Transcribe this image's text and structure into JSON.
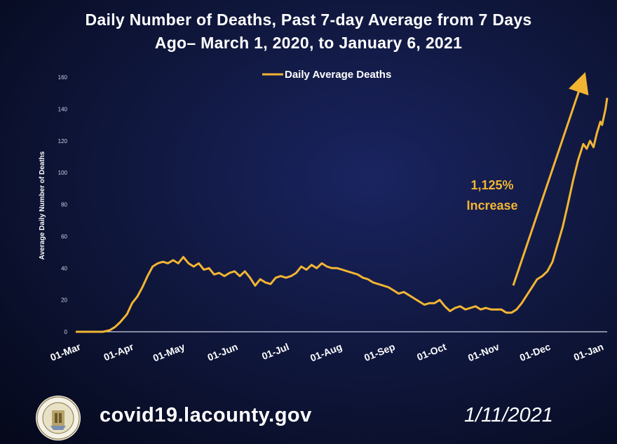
{
  "title_line1": "Daily Number of Deaths, Past 7-day Average from 7 Days",
  "title_line2": "Ago– March 1, 2020, to January 6, 2021",
  "footer": {
    "url": "covid19.lacounty.gov",
    "date": "1/11/2021",
    "seal_icon": "la-county-seal-icon"
  },
  "colors": {
    "line": "#f2b533",
    "annotation": "#f2b533",
    "axis": "#cfd3e6",
    "text": "#ffffff"
  },
  "annotation": {
    "line1": "1,125%",
    "line2": "Increase"
  },
  "chart_data": {
    "type": "line",
    "ylabel": "Average Daily Number of Deaths",
    "xlabel": "",
    "ylim": [
      0,
      160
    ],
    "yticks": [
      0,
      20,
      40,
      60,
      80,
      100,
      120,
      140,
      160
    ],
    "xlim": [
      "2020-03-01",
      "2021-01-06"
    ],
    "xticks": [
      {
        "date": "2020-03-01",
        "label": "01-Mar"
      },
      {
        "date": "2020-04-01",
        "label": "01-Apr"
      },
      {
        "date": "2020-05-01",
        "label": "01-May"
      },
      {
        "date": "2020-06-01",
        "label": "01-Jun"
      },
      {
        "date": "2020-07-01",
        "label": "01-Jul"
      },
      {
        "date": "2020-08-01",
        "label": "01-Aug"
      },
      {
        "date": "2020-09-01",
        "label": "01-Sep"
      },
      {
        "date": "2020-10-01",
        "label": "01-Oct"
      },
      {
        "date": "2020-11-01",
        "label": "01-Nov"
      },
      {
        "date": "2020-12-01",
        "label": "01-Dec"
      },
      {
        "date": "2021-01-01",
        "label": "01-Jan"
      }
    ],
    "legend_position": "top-center",
    "grid": false,
    "series": [
      {
        "name": "Daily Average Deaths",
        "points": [
          [
            "2020-03-01",
            0
          ],
          [
            "2020-03-10",
            0
          ],
          [
            "2020-03-17",
            0
          ],
          [
            "2020-03-21",
            1
          ],
          [
            "2020-03-24",
            3
          ],
          [
            "2020-03-27",
            6
          ],
          [
            "2020-03-31",
            11
          ],
          [
            "2020-04-03",
            18
          ],
          [
            "2020-04-06",
            22
          ],
          [
            "2020-04-09",
            28
          ],
          [
            "2020-04-12",
            35
          ],
          [
            "2020-04-15",
            41
          ],
          [
            "2020-04-18",
            43
          ],
          [
            "2020-04-21",
            44
          ],
          [
            "2020-04-24",
            43
          ],
          [
            "2020-04-27",
            45
          ],
          [
            "2020-04-30",
            43
          ],
          [
            "2020-05-03",
            47
          ],
          [
            "2020-05-06",
            43
          ],
          [
            "2020-05-09",
            41
          ],
          [
            "2020-05-12",
            43
          ],
          [
            "2020-05-15",
            39
          ],
          [
            "2020-05-18",
            40
          ],
          [
            "2020-05-21",
            36
          ],
          [
            "2020-05-24",
            37
          ],
          [
            "2020-05-27",
            35
          ],
          [
            "2020-05-30",
            37
          ],
          [
            "2020-06-02",
            38
          ],
          [
            "2020-06-05",
            35
          ],
          [
            "2020-06-08",
            38
          ],
          [
            "2020-06-11",
            34
          ],
          [
            "2020-06-14",
            29
          ],
          [
            "2020-06-17",
            33
          ],
          [
            "2020-06-20",
            31
          ],
          [
            "2020-06-23",
            30
          ],
          [
            "2020-06-26",
            34
          ],
          [
            "2020-06-29",
            35
          ],
          [
            "2020-07-02",
            34
          ],
          [
            "2020-07-05",
            35
          ],
          [
            "2020-07-08",
            37
          ],
          [
            "2020-07-11",
            41
          ],
          [
            "2020-07-14",
            39
          ],
          [
            "2020-07-17",
            42
          ],
          [
            "2020-07-20",
            40
          ],
          [
            "2020-07-23",
            43
          ],
          [
            "2020-07-26",
            41
          ],
          [
            "2020-07-29",
            40
          ],
          [
            "2020-08-01",
            40
          ],
          [
            "2020-08-04",
            39
          ],
          [
            "2020-08-07",
            38
          ],
          [
            "2020-08-10",
            37
          ],
          [
            "2020-08-13",
            36
          ],
          [
            "2020-08-16",
            34
          ],
          [
            "2020-08-19",
            33
          ],
          [
            "2020-08-22",
            31
          ],
          [
            "2020-08-25",
            30
          ],
          [
            "2020-08-28",
            29
          ],
          [
            "2020-08-31",
            28
          ],
          [
            "2020-09-03",
            26
          ],
          [
            "2020-09-06",
            24
          ],
          [
            "2020-09-09",
            25
          ],
          [
            "2020-09-12",
            23
          ],
          [
            "2020-09-15",
            21
          ],
          [
            "2020-09-18",
            19
          ],
          [
            "2020-09-21",
            17
          ],
          [
            "2020-09-24",
            18
          ],
          [
            "2020-09-27",
            18
          ],
          [
            "2020-09-30",
            20
          ],
          [
            "2020-10-03",
            16
          ],
          [
            "2020-10-06",
            13
          ],
          [
            "2020-10-09",
            15
          ],
          [
            "2020-10-12",
            16
          ],
          [
            "2020-10-15",
            14
          ],
          [
            "2020-10-18",
            15
          ],
          [
            "2020-10-21",
            16
          ],
          [
            "2020-10-24",
            14
          ],
          [
            "2020-10-27",
            15
          ],
          [
            "2020-10-30",
            14
          ],
          [
            "2020-11-02",
            14
          ],
          [
            "2020-11-05",
            14
          ],
          [
            "2020-11-08",
            12
          ],
          [
            "2020-11-11",
            12
          ],
          [
            "2020-11-14",
            14
          ],
          [
            "2020-11-17",
            18
          ],
          [
            "2020-11-20",
            23
          ],
          [
            "2020-11-23",
            28
          ],
          [
            "2020-11-26",
            33
          ],
          [
            "2020-11-29",
            35
          ],
          [
            "2020-12-02",
            38
          ],
          [
            "2020-12-05",
            44
          ],
          [
            "2020-12-08",
            55
          ],
          [
            "2020-12-11",
            66
          ],
          [
            "2020-12-14",
            80
          ],
          [
            "2020-12-17",
            95
          ],
          [
            "2020-12-20",
            108
          ],
          [
            "2020-12-23",
            118
          ],
          [
            "2020-12-25",
            115
          ],
          [
            "2020-12-27",
            120
          ],
          [
            "2020-12-29",
            116
          ],
          [
            "2020-12-31",
            125
          ],
          [
            "2021-01-02",
            132
          ],
          [
            "2021-01-03",
            130
          ],
          [
            "2021-01-05",
            140
          ],
          [
            "2021-01-06",
            147
          ]
        ]
      }
    ]
  }
}
